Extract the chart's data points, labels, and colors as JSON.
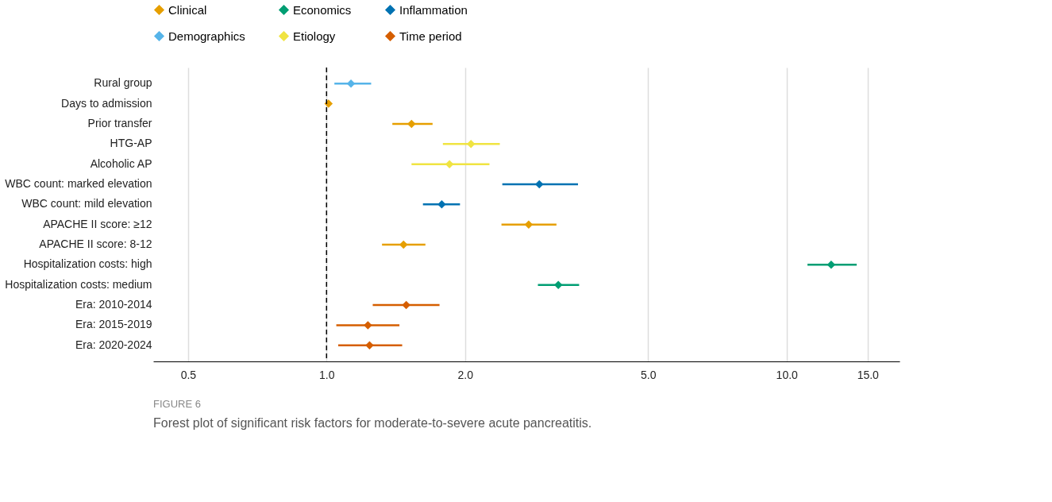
{
  "chart_data": {
    "type": "scatter",
    "orientation": "horizontal",
    "log": "x",
    "marker": "diamond",
    "grid": "x",
    "legend": "top",
    "categories": [
      "Rural group",
      "Days to admission",
      "Prior transfer",
      "HTG-AP",
      "Alcoholic AP",
      "WBC count: marked elevation",
      "WBC count: mild elevation",
      "APACHE II score: ≥12",
      "APACHE II score: 8-12",
      "Hospitalization costs: high",
      "Hospitalization costs: medium",
      "Era: 2010-2014",
      "Era: 2015-2019",
      "Era: 2020-2024"
    ],
    "xlim": [
      0.42,
      17.6
    ],
    "xticks": [
      0.5,
      {
        "value": 1,
        "label": "1.0"
      },
      {
        "value": 2,
        "label": "2.0"
      },
      {
        "value": 5,
        "label": "5.0"
      },
      {
        "value": 10,
        "label": "10.0"
      },
      {
        "value": 15,
        "label": "15.0"
      }
    ],
    "series": [
      {
        "name": "Clinical",
        "color": "#e69f00",
        "values": [
          null,
          1.01,
          1.53,
          null,
          null,
          null,
          null,
          2.75,
          1.47,
          null,
          null,
          null,
          null,
          null
        ],
        "errors": [
          null,
          null,
          [
            1.39,
            1.7
          ],
          null,
          null,
          null,
          null,
          [
            2.4,
            3.16
          ],
          [
            1.32,
            1.64
          ],
          null,
          null,
          null,
          null,
          null
        ]
      },
      {
        "name": "Economics",
        "color": "#009e73",
        "values": [
          null,
          null,
          null,
          null,
          null,
          null,
          null,
          null,
          null,
          12.5,
          3.19,
          null,
          null,
          null
        ],
        "errors": [
          null,
          null,
          null,
          null,
          null,
          null,
          null,
          null,
          null,
          [
            11.1,
            14.2
          ],
          [
            2.88,
            3.54
          ],
          null,
          null,
          null
        ]
      },
      {
        "name": "Inflammation",
        "color": "#0072b2",
        "values": [
          null,
          null,
          null,
          null,
          null,
          2.9,
          1.78,
          null,
          null,
          null,
          null,
          null,
          null,
          null
        ],
        "errors": [
          null,
          null,
          null,
          null,
          null,
          [
            2.41,
            3.52
          ],
          [
            1.62,
            1.95
          ],
          null,
          null,
          null,
          null,
          null,
          null,
          null
        ]
      },
      {
        "name": "Demographics",
        "color": "#56b4e9",
        "values": [
          1.13,
          null,
          null,
          null,
          null,
          null,
          null,
          null,
          null,
          null,
          null,
          null,
          null,
          null
        ],
        "errors": [
          [
            1.04,
            1.25
          ],
          null,
          null,
          null,
          null,
          null,
          null,
          null,
          null,
          null,
          null,
          null,
          null,
          null
        ]
      },
      {
        "name": "Etiology",
        "color": "#f0e442",
        "values": [
          null,
          null,
          null,
          2.06,
          1.85,
          null,
          null,
          null,
          null,
          null,
          null,
          null,
          null,
          null
        ],
        "errors": [
          null,
          null,
          null,
          [
            1.79,
            2.38
          ],
          [
            1.53,
            2.26
          ],
          null,
          null,
          null,
          null,
          null,
          null,
          null,
          null,
          null
        ]
      },
      {
        "name": "Time period",
        "color": "#d55e00",
        "values": [
          null,
          null,
          null,
          null,
          null,
          null,
          null,
          null,
          null,
          null,
          null,
          1.49,
          1.23,
          1.24
        ],
        "errors": [
          null,
          null,
          null,
          null,
          null,
          null,
          null,
          null,
          null,
          null,
          null,
          [
            1.26,
            1.76
          ],
          [
            1.05,
            1.44
          ],
          [
            1.06,
            1.46
          ]
        ]
      }
    ],
    "ref_lines": [
      {
        "axis": "x",
        "value": 1,
        "color": "#000000",
        "line_style": "dashed"
      }
    ],
    "annotations": [
      "FIGURE 6",
      "Forest plot of significant risk factors for moderate-to-severe acute pancreatitis."
    ]
  }
}
